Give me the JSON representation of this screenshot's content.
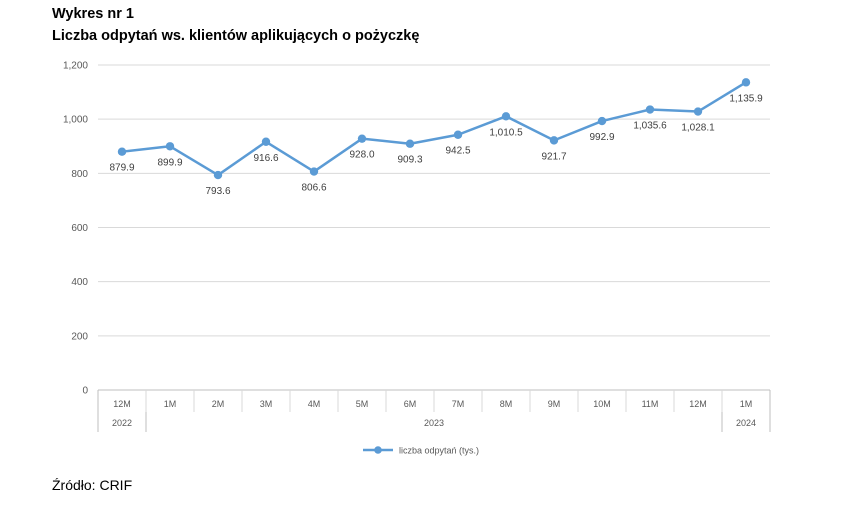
{
  "header": {
    "title": "Wykres nr 1",
    "subtitle": "Liczba odpytań ws. klientów aplikujących o pożyczkę"
  },
  "source": "Źródło: CRIF",
  "chart_data": {
    "type": "line",
    "categories": [
      "12M",
      "1M",
      "2M",
      "3M",
      "4M",
      "5M",
      "6M",
      "7M",
      "8M",
      "9M",
      "10M",
      "11M",
      "12M",
      "1M"
    ],
    "year_groups": [
      {
        "label": "2022",
        "from": 0,
        "to": 0
      },
      {
        "label": "2023",
        "from": 1,
        "to": 12
      },
      {
        "label": "2024",
        "from": 13,
        "to": 13
      }
    ],
    "series": [
      {
        "name": "liczba odpytań (tys.)",
        "values": [
          879.9,
          899.9,
          793.6,
          916.6,
          806.6,
          928.0,
          909.3,
          942.5,
          1010.5,
          921.7,
          992.9,
          1035.6,
          1028.1,
          1135.9
        ],
        "labels": [
          "879.9",
          "899.9",
          "793.6",
          "916.6",
          "806.6",
          "928.0",
          "909.3",
          "942.5",
          "1,010.5",
          "921.7",
          "992.9",
          "1,035.6",
          "1,028.1",
          "1,135.9"
        ],
        "label_pos": [
          "below",
          "below",
          "below",
          "below",
          "below",
          "below",
          "below",
          "below",
          "below",
          "below",
          "below",
          "below",
          "below",
          "below"
        ],
        "color": "#5b9bd5"
      }
    ],
    "ylim": [
      0,
      1200
    ],
    "yticks": [
      0,
      200,
      400,
      600,
      800,
      1000,
      1200
    ],
    "ytick_labels": [
      "0",
      "200",
      "400",
      "600",
      "800",
      "1,000",
      "1,200"
    ],
    "grid": true,
    "legend_position": "bottom",
    "gridline_color": "#d9d9d9"
  }
}
